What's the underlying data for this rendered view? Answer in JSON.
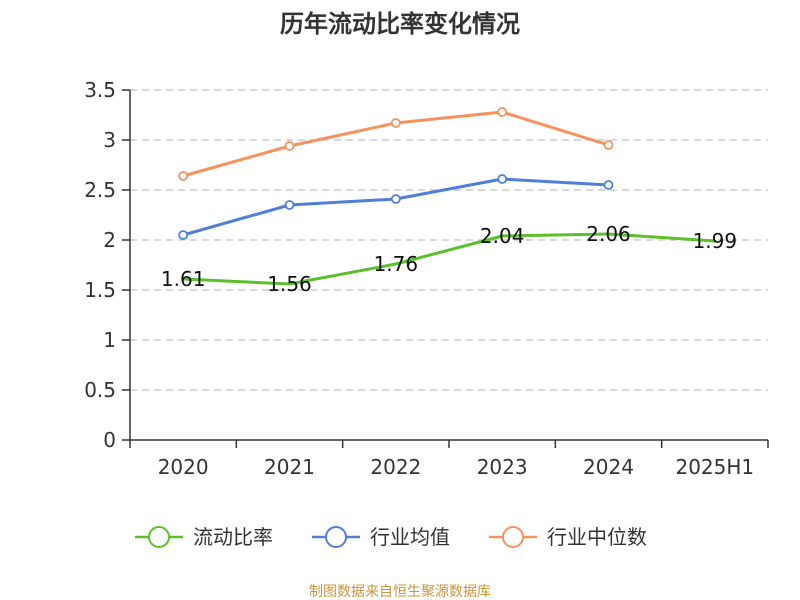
{
  "chart_data": {
    "type": "line",
    "title": "历年流动比率变化情况",
    "categories": [
      "2020",
      "2021",
      "2022",
      "2023",
      "2024",
      "2025H1"
    ],
    "ylim": [
      0,
      3.5
    ],
    "yticks": [
      "0",
      "0.5",
      "1",
      "1.5",
      "2",
      "2.5",
      "3",
      "3.5"
    ],
    "ytick_values": [
      0,
      0.5,
      1,
      1.5,
      2,
      2.5,
      3,
      3.5
    ],
    "grid": true,
    "legend_position": "bottom",
    "series": [
      {
        "name": "流动比率",
        "color": "#5cc02a",
        "values": [
          1.61,
          1.56,
          1.76,
          2.04,
          2.06,
          1.99
        ],
        "labels": [
          "1.61",
          "1.56",
          "1.76",
          "2.04",
          "2.06",
          "1.99"
        ],
        "show_labels": true,
        "markers": false
      },
      {
        "name": "行业均值",
        "color": "#4f7fd8",
        "values": [
          2.05,
          2.35,
          2.41,
          2.61,
          2.55,
          null
        ],
        "show_labels": false,
        "markers": true
      },
      {
        "name": "行业中位数",
        "color": "#f5925e",
        "values": [
          2.64,
          2.94,
          3.17,
          3.28,
          2.95,
          null
        ],
        "show_labels": false,
        "markers": true
      }
    ]
  },
  "source": {
    "text": "制图数据来自恒生聚源数据库",
    "color": "#c8963e"
  }
}
